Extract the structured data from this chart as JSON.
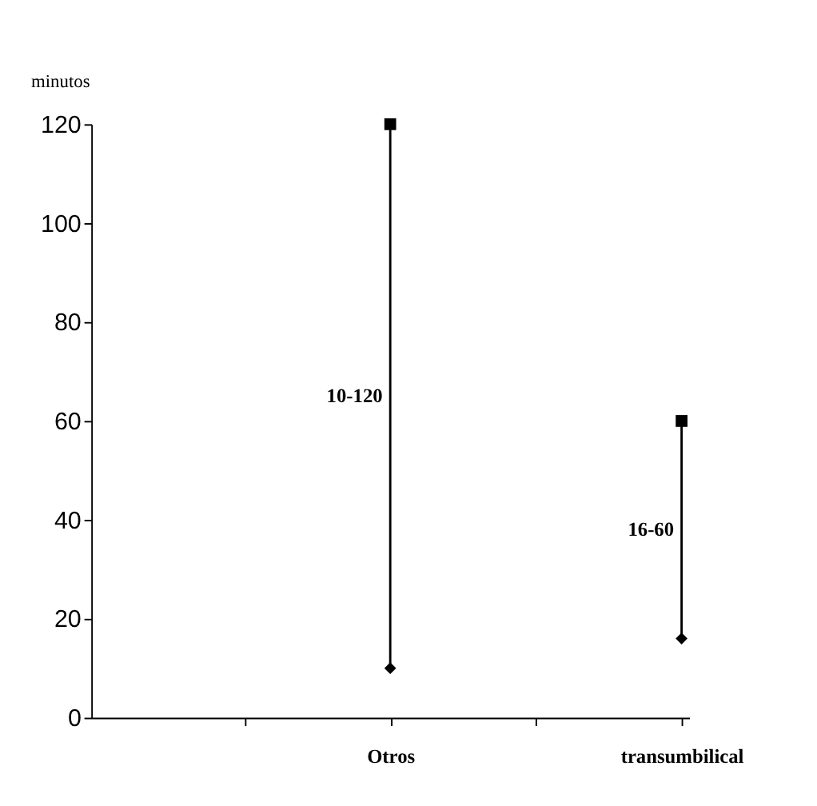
{
  "chart_data": {
    "type": "bar",
    "ylabel": "minutos",
    "categories": [
      null,
      "Otros",
      null,
      "transumbilical"
    ],
    "value_labels": [
      null,
      "10-120",
      null,
      "16-60"
    ],
    "series": [
      {
        "color": "#000000",
        "base": [
          null,
          10,
          null,
          16
        ],
        "values": [
          null,
          110,
          null,
          44
        ]
      },
      {
        "type": "scatter",
        "marker": "square",
        "color": "#000000",
        "values": [
          null,
          120,
          null,
          60
        ]
      },
      {
        "type": "scatter",
        "marker": "diamond",
        "color": "#000000",
        "values": [
          null,
          10,
          null,
          16
        ]
      }
    ],
    "ylim": [
      0,
      120
    ],
    "yticks": [
      0,
      20,
      40,
      60,
      80,
      100,
      120
    ],
    "grid": false
  }
}
